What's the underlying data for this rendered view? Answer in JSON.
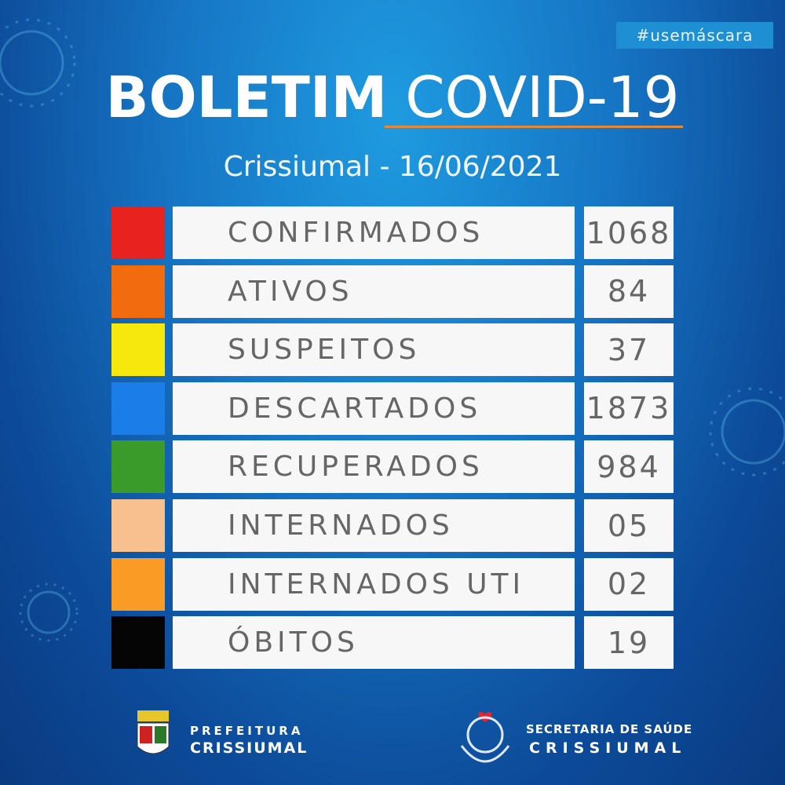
{
  "header": {
    "hashtag": "#usemáscara",
    "title_bold": "BOLETIM",
    "title_light": "COVID-19",
    "subtitle": "Crissiumal - 16/06/2021"
  },
  "table": {
    "rows": [
      {
        "label": "CONFIRMADOS",
        "value": "1068",
        "color": "#e8231f"
      },
      {
        "label": "ATIVOS",
        "value": "84",
        "color": "#f26b0f"
      },
      {
        "label": "SUSPEITOS",
        "value": "37",
        "color": "#f6e80a"
      },
      {
        "label": "DESCARTADOS",
        "value": "1873",
        "color": "#1a7de8"
      },
      {
        "label": "RECUPERADOS",
        "value": "984",
        "color": "#3a9b2a"
      },
      {
        "label": "INTERNADOS",
        "value": "05",
        "color": "#f7c08f"
      },
      {
        "label": "INTERNADOS UTI",
        "value": "02",
        "color": "#f99b25"
      },
      {
        "label": "ÓBITOS",
        "value": "19",
        "color": "#050505"
      }
    ]
  },
  "footer": {
    "left_line1": "PREFEITURA",
    "left_line2": "CRISSIUMAL",
    "right_line1": "SECRETARIA DE SAÚDE",
    "right_line2": "CRISSIUMAL"
  }
}
